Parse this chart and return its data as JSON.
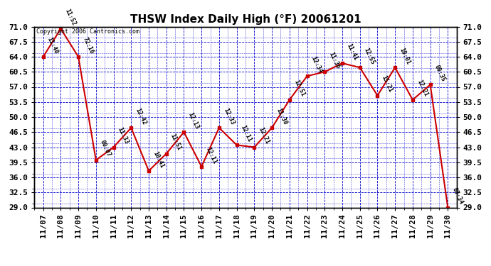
{
  "title": "THSW Index Daily High (°F) 20061201",
  "copyright": "Copyright 2006 Cantronics.com",
  "dates": [
    "11/07",
    "11/08",
    "11/09",
    "11/10",
    "11/11",
    "11/12",
    "11/13",
    "11/14",
    "11/15",
    "11/16",
    "11/17",
    "11/18",
    "11/19",
    "11/20",
    "11/21",
    "11/22",
    "11/23",
    "11/24",
    "11/25",
    "11/26",
    "11/27",
    "11/28",
    "11/29",
    "11/30"
  ],
  "values": [
    64.0,
    70.5,
    64.0,
    40.0,
    43.0,
    47.5,
    37.5,
    41.5,
    46.5,
    38.5,
    47.5,
    43.5,
    43.0,
    47.5,
    54.0,
    59.5,
    60.5,
    62.5,
    61.5,
    55.0,
    61.5,
    54.0,
    57.5,
    29.0
  ],
  "labels": [
    "11:40",
    "11:52",
    "72:16",
    "00:07",
    "11:33",
    "12:42",
    "10:41",
    "11:51",
    "12:13",
    "12:11",
    "12:33",
    "12:11",
    "12:21",
    "11:30",
    "12:51",
    "12:34",
    "11:36",
    "11:41",
    "12:55",
    "15:21",
    "10:01",
    "12:21",
    "09:35",
    "00:34"
  ],
  "ylim_min": 29.0,
  "ylim_max": 71.0,
  "yticks": [
    29.0,
    32.5,
    36.0,
    39.5,
    43.0,
    46.5,
    50.0,
    53.5,
    57.0,
    60.5,
    64.0,
    67.5,
    71.0
  ],
  "line_color": "#cc0000",
  "marker_color": "#cc0000",
  "bg_color": "#ffffff",
  "grid_color": "#0000cc",
  "label_color": "#000000",
  "title_color": "#000000",
  "title_fontsize": 11,
  "tick_fontsize": 8,
  "label_fontsize": 6
}
